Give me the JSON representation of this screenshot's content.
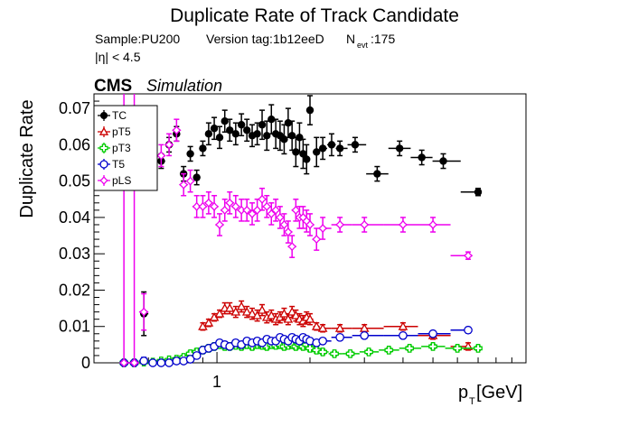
{
  "chart_data": {
    "type": "scatter",
    "title": "Duplicate Rate of Track Candidate",
    "info_sample": "Sample:PU200",
    "info_version": "Version tag:1b12eeD",
    "info_nevt_label": "N",
    "info_nevt_sub": "evt",
    "info_nevt_value": ":175",
    "info_eta": "|η| < 4.5",
    "cms_label": "CMS",
    "simulation_label": "Simulation",
    "xlabel": "p",
    "xlabel_sub": "T",
    "xlabel_unit": " [GeV]",
    "ylabel": "Duplicate Rate",
    "x_scale": "log",
    "xlim": [
      0.4,
      10
    ],
    "ylim": [
      0,
      0.074
    ],
    "x_tick_labels": [
      {
        "value": 1,
        "label": "1"
      }
    ],
    "y_tick_labels": [
      {
        "value": 0,
        "label": "0"
      },
      {
        "value": 0.01,
        "label": "0.01"
      },
      {
        "value": 0.02,
        "label": "0.02"
      },
      {
        "value": 0.03,
        "label": "0.03"
      },
      {
        "value": 0.04,
        "label": "0.04"
      },
      {
        "value": 0.05,
        "label": "0.05"
      },
      {
        "value": 0.06,
        "label": "0.06"
      },
      {
        "value": 0.07,
        "label": "0.07"
      }
    ],
    "legend_position": "top-left",
    "series": [
      {
        "name": "TC",
        "color": "#000000",
        "marker": "filled-circle",
        "x": [
          0.58,
          0.62,
          0.66,
          0.7,
          0.74,
          0.78,
          0.82,
          0.86,
          0.9,
          0.94,
          0.98,
          1.02,
          1.06,
          1.1,
          1.15,
          1.2,
          1.25,
          1.3,
          1.35,
          1.4,
          1.45,
          1.5,
          1.55,
          1.6,
          1.65,
          1.7,
          1.75,
          1.8,
          1.85,
          1.9,
          1.95,
          2.0,
          2.1,
          2.2,
          2.35,
          2.5,
          2.8,
          3.3,
          3.9,
          4.6,
          5.4,
          7.0
        ],
        "y": [
          0.0135,
          0.0585,
          0.0555,
          0.06,
          0.063,
          0.052,
          0.0575,
          0.051,
          0.059,
          0.063,
          0.0645,
          0.062,
          0.0665,
          0.064,
          0.063,
          0.0655,
          0.064,
          0.0625,
          0.063,
          0.0655,
          0.0625,
          0.067,
          0.063,
          0.0625,
          0.0615,
          0.066,
          0.0625,
          0.058,
          0.062,
          0.0575,
          0.056,
          0.0695,
          0.058,
          0.059,
          0.06,
          0.059,
          0.06,
          0.052,
          0.059,
          0.0565,
          0.0555,
          0.047
        ],
        "yerr": [
          0.006,
          0.002,
          0.002,
          0.002,
          0.002,
          0.002,
          0.002,
          0.002,
          0.002,
          0.003,
          0.003,
          0.003,
          0.003,
          0.003,
          0.003,
          0.003,
          0.003,
          0.003,
          0.003,
          0.004,
          0.004,
          0.004,
          0.004,
          0.004,
          0.004,
          0.004,
          0.004,
          0.004,
          0.004,
          0.004,
          0.004,
          0.004,
          0.004,
          0.003,
          0.003,
          0.002,
          0.002,
          0.002,
          0.002,
          0.002,
          0.002,
          0.001
        ]
      },
      {
        "name": "pT5",
        "color": "#cc0000",
        "marker": "open-triangle",
        "x": [
          0.9,
          0.94,
          0.98,
          1.02,
          1.06,
          1.1,
          1.15,
          1.2,
          1.25,
          1.3,
          1.35,
          1.4,
          1.45,
          1.5,
          1.55,
          1.6,
          1.65,
          1.7,
          1.75,
          1.8,
          1.85,
          1.9,
          1.95,
          2.0,
          2.1,
          2.2,
          2.5,
          3.0,
          4.0,
          5.0,
          6.5
        ],
        "y": [
          0.01,
          0.011,
          0.0125,
          0.0135,
          0.015,
          0.015,
          0.014,
          0.0155,
          0.014,
          0.0135,
          0.013,
          0.0145,
          0.0125,
          0.013,
          0.012,
          0.0125,
          0.0135,
          0.012,
          0.014,
          0.013,
          0.012,
          0.0115,
          0.0125,
          0.012,
          0.01,
          0.0095,
          0.0095,
          0.0095,
          0.01,
          0.0075,
          0.0045
        ],
        "yerr": [
          0.001,
          0.001,
          0.001,
          0.001,
          0.0015,
          0.0015,
          0.0015,
          0.0015,
          0.0015,
          0.0015,
          0.0015,
          0.0015,
          0.0015,
          0.0015,
          0.0015,
          0.0015,
          0.0015,
          0.0015,
          0.0015,
          0.0015,
          0.0015,
          0.0015,
          0.0015,
          0.0015,
          0.001,
          0.001,
          0.001,
          0.001,
          0.001,
          0.001,
          0.001
        ]
      },
      {
        "name": "pT3",
        "color": "#00cc00",
        "marker": "open-cross",
        "x": [
          0.5,
          0.54,
          0.58,
          0.62,
          0.66,
          0.7,
          0.74,
          0.78,
          0.82,
          0.86,
          0.9,
          0.94,
          0.98,
          1.02,
          1.06,
          1.1,
          1.15,
          1.2,
          1.25,
          1.3,
          1.35,
          1.4,
          1.45,
          1.5,
          1.55,
          1.6,
          1.65,
          1.7,
          1.75,
          1.8,
          1.85,
          1.9,
          1.95,
          2.0,
          2.1,
          2.2,
          2.4,
          2.7,
          3.1,
          3.6,
          4.2,
          5.0,
          6.0,
          7.0
        ],
        "y": [
          0.0,
          0.0,
          0.0002,
          0.0002,
          0.0005,
          0.0008,
          0.001,
          0.0015,
          0.0025,
          0.003,
          0.0035,
          0.004,
          0.0045,
          0.005,
          0.0045,
          0.0045,
          0.0048,
          0.0045,
          0.005,
          0.0045,
          0.005,
          0.0048,
          0.0045,
          0.005,
          0.0048,
          0.005,
          0.0045,
          0.0048,
          0.005,
          0.0045,
          0.005,
          0.0045,
          0.005,
          0.004,
          0.0035,
          0.003,
          0.0025,
          0.0025,
          0.003,
          0.0035,
          0.004,
          0.0045,
          0.004,
          0.004
        ],
        "yerr": [
          0.0002,
          0.0002,
          0.0002,
          0.0002,
          0.0003,
          0.0004,
          0.0005,
          0.0006,
          0.0007,
          0.0008,
          0.0008,
          0.0008,
          0.0008,
          0.0008,
          0.0008,
          0.0008,
          0.0008,
          0.0008,
          0.0008,
          0.0008,
          0.0008,
          0.0008,
          0.0008,
          0.0008,
          0.0008,
          0.0008,
          0.0008,
          0.0008,
          0.0008,
          0.0008,
          0.0008,
          0.0008,
          0.0008,
          0.0008,
          0.0008,
          0.0007,
          0.0006,
          0.0006,
          0.0006,
          0.0006,
          0.0006,
          0.0006,
          0.0006,
          0.0006
        ]
      },
      {
        "name": "T5",
        "color": "#0000cc",
        "marker": "open-circle",
        "x": [
          0.5,
          0.54,
          0.58,
          0.62,
          0.66,
          0.7,
          0.74,
          0.78,
          0.82,
          0.86,
          0.9,
          0.94,
          0.98,
          1.02,
          1.06,
          1.1,
          1.15,
          1.2,
          1.25,
          1.3,
          1.35,
          1.4,
          1.45,
          1.5,
          1.55,
          1.6,
          1.65,
          1.7,
          1.75,
          1.8,
          1.85,
          1.9,
          1.95,
          2.0,
          2.1,
          2.2,
          2.5,
          3.0,
          4.0,
          5.0,
          6.5
        ],
        "y": [
          0.0,
          0.0,
          0.0005,
          0.0,
          0.0,
          0.0,
          0.0005,
          0.0005,
          0.001,
          0.002,
          0.0035,
          0.004,
          0.0045,
          0.0055,
          0.005,
          0.0045,
          0.0055,
          0.005,
          0.006,
          0.0055,
          0.006,
          0.0055,
          0.0065,
          0.006,
          0.006,
          0.007,
          0.0065,
          0.006,
          0.007,
          0.0065,
          0.006,
          0.007,
          0.0065,
          0.006,
          0.0055,
          0.006,
          0.007,
          0.0075,
          0.0075,
          0.008,
          0.009
        ],
        "yerr": [
          0.0002,
          0.0002,
          0.001,
          0.0002,
          0.0002,
          0.0002,
          0.0003,
          0.0004,
          0.0006,
          0.0007,
          0.0008,
          0.0008,
          0.0008,
          0.0008,
          0.0008,
          0.0008,
          0.0008,
          0.0008,
          0.0008,
          0.0008,
          0.0008,
          0.0008,
          0.0008,
          0.0008,
          0.0008,
          0.0008,
          0.0008,
          0.0008,
          0.0008,
          0.0008,
          0.0008,
          0.0008,
          0.0008,
          0.0008,
          0.0008,
          0.0008,
          0.0008,
          0.0008,
          0.0008,
          0.0008,
          0.0008
        ]
      },
      {
        "name": "pLS",
        "color": "#ee00ee",
        "marker": "open-star",
        "x": [
          0.5,
          0.54,
          0.58,
          0.62,
          0.66,
          0.7,
          0.74,
          0.78,
          0.82,
          0.86,
          0.9,
          0.94,
          0.98,
          1.02,
          1.06,
          1.1,
          1.15,
          1.2,
          1.25,
          1.3,
          1.35,
          1.4,
          1.45,
          1.5,
          1.55,
          1.6,
          1.65,
          1.7,
          1.75,
          1.8,
          1.85,
          1.9,
          1.95,
          2.0,
          2.1,
          2.2,
          2.5,
          3.0,
          4.0,
          5.0,
          6.5
        ],
        "y": [
          0.0,
          0.0,
          0.014,
          0.059,
          0.057,
          0.06,
          0.064,
          0.049,
          0.05,
          0.043,
          0.043,
          0.044,
          0.043,
          0.038,
          0.042,
          0.044,
          0.043,
          0.042,
          0.042,
          0.041,
          0.042,
          0.045,
          0.043,
          0.041,
          0.042,
          0.04,
          0.038,
          0.036,
          0.032,
          0.042,
          0.04,
          0.04,
          0.039,
          0.038,
          0.034,
          0.037,
          0.038,
          0.038,
          0.038,
          0.038,
          0.0295
        ],
        "yerr": [
          0.08,
          0.08,
          0.005,
          0.003,
          0.003,
          0.003,
          0.003,
          0.003,
          0.003,
          0.003,
          0.003,
          0.003,
          0.003,
          0.003,
          0.003,
          0.003,
          0.003,
          0.003,
          0.003,
          0.003,
          0.003,
          0.003,
          0.003,
          0.003,
          0.003,
          0.003,
          0.003,
          0.003,
          0.003,
          0.003,
          0.003,
          0.003,
          0.003,
          0.003,
          0.003,
          0.003,
          0.002,
          0.002,
          0.002,
          0.002,
          0.001
        ]
      }
    ]
  }
}
